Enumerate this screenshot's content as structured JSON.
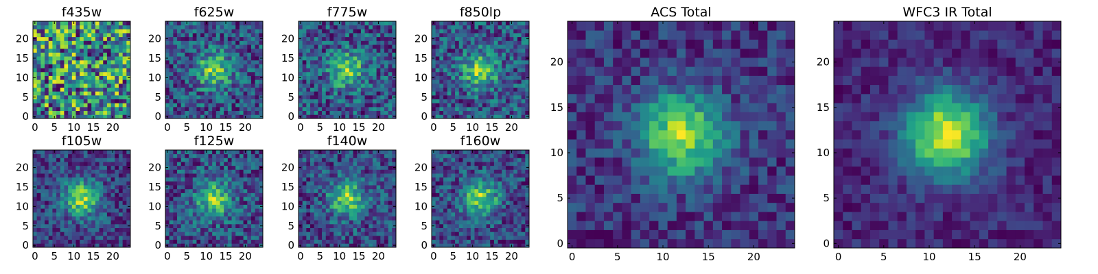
{
  "chart_data": {
    "type": "heatmap",
    "colormap": "viridis",
    "grid": false,
    "panels": [
      {
        "id": "f435w",
        "title": "f435w",
        "size": 25,
        "signal": 0.05,
        "noise": 0.85,
        "base": 0.7,
        "xticks": [
          0,
          5,
          10,
          15,
          20
        ],
        "yticks": [
          0,
          5,
          10,
          15,
          20
        ],
        "xlim": [
          0,
          24
        ],
        "ylim": [
          0,
          24
        ],
        "seed": 11
      },
      {
        "id": "f625w",
        "title": "f625w",
        "size": 25,
        "signal": 0.55,
        "noise": 0.55,
        "base": 0.35,
        "xticks": [
          0,
          5,
          10,
          15,
          20
        ],
        "yticks": [
          0,
          5,
          10,
          15,
          20
        ],
        "xlim": [
          0,
          24
        ],
        "ylim": [
          0,
          24
        ],
        "seed": 23
      },
      {
        "id": "f775w",
        "title": "f775w",
        "size": 25,
        "signal": 0.5,
        "noise": 0.55,
        "base": 0.4,
        "xticks": [
          0,
          5,
          10,
          15,
          20
        ],
        "yticks": [
          0,
          5,
          10,
          15,
          20
        ],
        "xlim": [
          0,
          24
        ],
        "ylim": [
          0,
          24
        ],
        "seed": 37
      },
      {
        "id": "f850lp",
        "title": "f850lp",
        "size": 25,
        "signal": 0.55,
        "noise": 0.55,
        "base": 0.4,
        "xticks": [
          0,
          5,
          10,
          15,
          20
        ],
        "yticks": [
          0,
          5,
          10,
          15,
          20
        ],
        "xlim": [
          0,
          24
        ],
        "ylim": [
          0,
          24
        ],
        "seed": 41
      },
      {
        "id": "f105w",
        "title": "f105w",
        "size": 25,
        "signal": 0.6,
        "noise": 0.4,
        "base": 0.3,
        "xticks": [
          0,
          5,
          10,
          15,
          20
        ],
        "yticks": [
          0,
          5,
          10,
          15,
          20
        ],
        "xlim": [
          0,
          24
        ],
        "ylim": [
          0,
          24
        ],
        "seed": 53
      },
      {
        "id": "f125w",
        "title": "f125w",
        "size": 25,
        "signal": 0.55,
        "noise": 0.5,
        "base": 0.4,
        "xticks": [
          0,
          5,
          10,
          15,
          20
        ],
        "yticks": [
          0,
          5,
          10,
          15,
          20
        ],
        "xlim": [
          0,
          24
        ],
        "ylim": [
          0,
          24
        ],
        "seed": 67
      },
      {
        "id": "f140w",
        "title": "f140w",
        "size": 25,
        "signal": 0.6,
        "noise": 0.5,
        "base": 0.35,
        "xticks": [
          0,
          5,
          10,
          15,
          20
        ],
        "yticks": [
          0,
          5,
          10,
          15,
          20
        ],
        "xlim": [
          0,
          24
        ],
        "ylim": [
          0,
          24
        ],
        "seed": 79
      },
      {
        "id": "f160w",
        "title": "f160w",
        "size": 25,
        "signal": 0.65,
        "noise": 0.5,
        "base": 0.3,
        "xticks": [
          0,
          5,
          10,
          15,
          20
        ],
        "yticks": [
          0,
          5,
          10,
          15,
          20
        ],
        "xlim": [
          0,
          24
        ],
        "ylim": [
          0,
          24
        ],
        "seed": 83
      },
      {
        "id": "acs-total",
        "title": "ACS Total",
        "size": 25,
        "signal": 0.7,
        "noise": 0.32,
        "base": 0.35,
        "xticks": [
          0,
          5,
          10,
          15,
          20
        ],
        "yticks": [
          0,
          5,
          10,
          15,
          20
        ],
        "xlim": [
          0,
          24
        ],
        "ylim": [
          0,
          24
        ],
        "seed": 97
      },
      {
        "id": "wfc3-ir-total",
        "title": "WFC3 IR Total",
        "size": 25,
        "signal": 0.8,
        "noise": 0.22,
        "base": 0.2,
        "xticks": [
          0,
          5,
          10,
          15,
          20
        ],
        "yticks": [
          0,
          5,
          10,
          15,
          20
        ],
        "xlim": [
          0,
          24
        ],
        "ylim": [
          0,
          24
        ],
        "seed": 101
      }
    ]
  }
}
